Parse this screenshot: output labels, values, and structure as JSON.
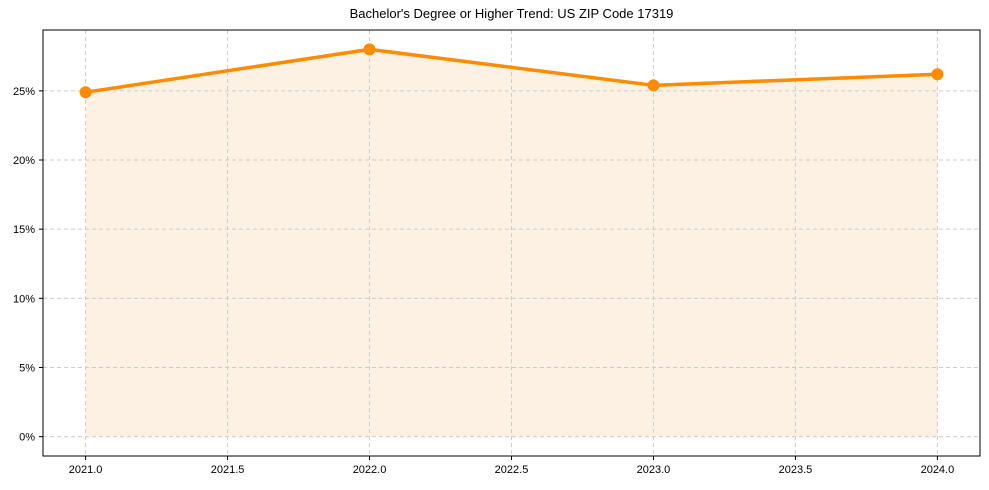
{
  "chart_data": {
    "type": "line",
    "title": "Bachelor's Degree or Higher Trend: US ZIP Code 17319",
    "xlabel": "",
    "ylabel": "",
    "x": [
      2021,
      2022,
      2023,
      2024
    ],
    "series": [
      {
        "name": "Bachelor's Degree or Higher",
        "values": [
          24.9,
          28.0,
          25.4,
          26.2
        ],
        "color": "#ff8c00",
        "fill": "#fdf1e3"
      }
    ],
    "x_ticks": [
      "2021.0",
      "2021.5",
      "2022.0",
      "2022.5",
      "2023.0",
      "2023.5",
      "2024.0"
    ],
    "y_ticks": [
      "0%",
      "5%",
      "10%",
      "15%",
      "20%",
      "25%"
    ],
    "xlim": [
      2020.85,
      2024.15
    ],
    "ylim": [
      -1.4,
      29.4
    ],
    "grid": true,
    "legend": null
  }
}
